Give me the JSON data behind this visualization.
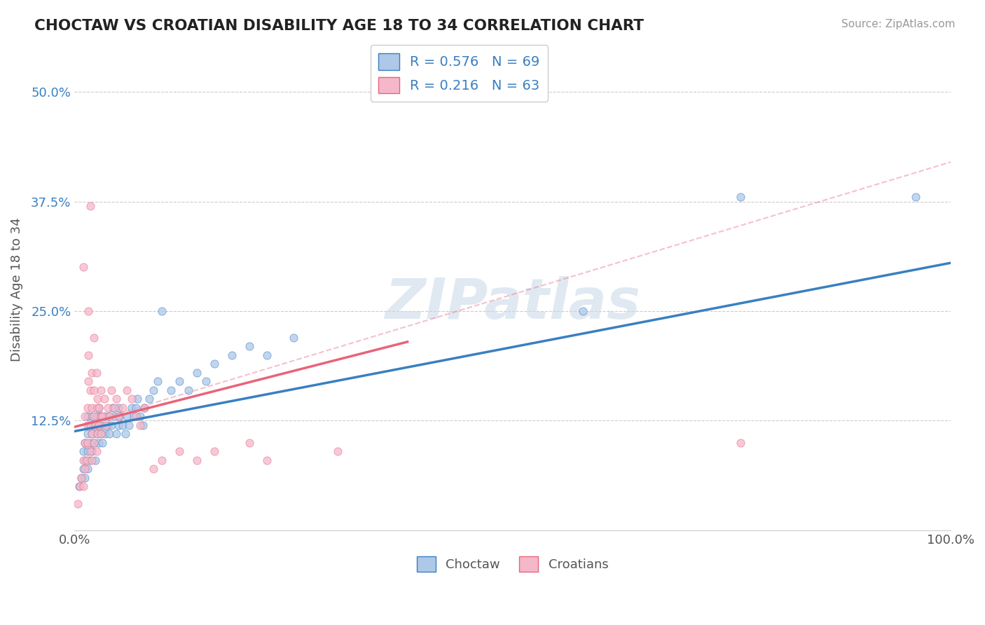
{
  "title": "CHOCTAW VS CROATIAN DISABILITY AGE 18 TO 34 CORRELATION CHART",
  "source": "Source: ZipAtlas.com",
  "ylabel": "Disability Age 18 to 34",
  "xlim": [
    0,
    1.0
  ],
  "ylim": [
    0,
    0.55
  ],
  "choctaw_R": 0.576,
  "choctaw_N": 69,
  "croatian_R": 0.216,
  "croatian_N": 63,
  "choctaw_color": "#adc8e8",
  "croatian_color": "#f5b8cb",
  "choctaw_line_color": "#3a7fc1",
  "croatian_line_color": "#e8647a",
  "watermark_text": "ZIPatlas",
  "background_color": "#ffffff",
  "choctaw_line": [
    0.0,
    0.113,
    1.0,
    0.305
  ],
  "croatian_line": [
    0.0,
    0.118,
    0.38,
    0.215
  ],
  "croatian_dashed": [
    0.0,
    0.118,
    1.0,
    0.42
  ],
  "choctaw_scatter": [
    [
      0.005,
      0.05
    ],
    [
      0.008,
      0.06
    ],
    [
      0.01,
      0.07
    ],
    [
      0.01,
      0.09
    ],
    [
      0.012,
      0.06
    ],
    [
      0.012,
      0.08
    ],
    [
      0.012,
      0.1
    ],
    [
      0.015,
      0.07
    ],
    [
      0.015,
      0.09
    ],
    [
      0.015,
      0.11
    ],
    [
      0.015,
      0.13
    ],
    [
      0.017,
      0.08
    ],
    [
      0.018,
      0.1
    ],
    [
      0.018,
      0.12
    ],
    [
      0.02,
      0.09
    ],
    [
      0.02,
      0.11
    ],
    [
      0.02,
      0.13
    ],
    [
      0.022,
      0.1
    ],
    [
      0.022,
      0.12
    ],
    [
      0.024,
      0.08
    ],
    [
      0.025,
      0.11
    ],
    [
      0.025,
      0.13
    ],
    [
      0.028,
      0.1
    ],
    [
      0.028,
      0.12
    ],
    [
      0.028,
      0.14
    ],
    [
      0.03,
      0.11
    ],
    [
      0.03,
      0.13
    ],
    [
      0.032,
      0.1
    ],
    [
      0.032,
      0.12
    ],
    [
      0.035,
      0.11
    ],
    [
      0.035,
      0.13
    ],
    [
      0.038,
      0.12
    ],
    [
      0.04,
      0.11
    ],
    [
      0.04,
      0.13
    ],
    [
      0.042,
      0.12
    ],
    [
      0.044,
      0.14
    ],
    [
      0.046,
      0.13
    ],
    [
      0.048,
      0.11
    ],
    [
      0.05,
      0.12
    ],
    [
      0.05,
      0.14
    ],
    [
      0.052,
      0.13
    ],
    [
      0.055,
      0.12
    ],
    [
      0.058,
      0.11
    ],
    [
      0.06,
      0.13
    ],
    [
      0.062,
      0.12
    ],
    [
      0.065,
      0.14
    ],
    [
      0.068,
      0.13
    ],
    [
      0.07,
      0.14
    ],
    [
      0.072,
      0.15
    ],
    [
      0.075,
      0.13
    ],
    [
      0.078,
      0.12
    ],
    [
      0.08,
      0.14
    ],
    [
      0.085,
      0.15
    ],
    [
      0.09,
      0.16
    ],
    [
      0.095,
      0.17
    ],
    [
      0.1,
      0.25
    ],
    [
      0.11,
      0.16
    ],
    [
      0.12,
      0.17
    ],
    [
      0.13,
      0.16
    ],
    [
      0.14,
      0.18
    ],
    [
      0.15,
      0.17
    ],
    [
      0.16,
      0.19
    ],
    [
      0.18,
      0.2
    ],
    [
      0.2,
      0.21
    ],
    [
      0.22,
      0.2
    ],
    [
      0.25,
      0.22
    ],
    [
      0.58,
      0.25
    ],
    [
      0.76,
      0.38
    ],
    [
      0.96,
      0.38
    ]
  ],
  "croatian_scatter": [
    [
      0.004,
      0.03
    ],
    [
      0.006,
      0.05
    ],
    [
      0.008,
      0.06
    ],
    [
      0.01,
      0.05
    ],
    [
      0.01,
      0.08
    ],
    [
      0.01,
      0.3
    ],
    [
      0.012,
      0.07
    ],
    [
      0.012,
      0.1
    ],
    [
      0.012,
      0.13
    ],
    [
      0.014,
      0.08
    ],
    [
      0.015,
      0.1
    ],
    [
      0.015,
      0.12
    ],
    [
      0.015,
      0.14
    ],
    [
      0.016,
      0.17
    ],
    [
      0.016,
      0.2
    ],
    [
      0.016,
      0.25
    ],
    [
      0.018,
      0.37
    ],
    [
      0.018,
      0.09
    ],
    [
      0.018,
      0.12
    ],
    [
      0.018,
      0.16
    ],
    [
      0.02,
      0.08
    ],
    [
      0.02,
      0.11
    ],
    [
      0.02,
      0.14
    ],
    [
      0.02,
      0.18
    ],
    [
      0.022,
      0.1
    ],
    [
      0.022,
      0.13
    ],
    [
      0.022,
      0.16
    ],
    [
      0.022,
      0.22
    ],
    [
      0.024,
      0.12
    ],
    [
      0.025,
      0.09
    ],
    [
      0.025,
      0.14
    ],
    [
      0.025,
      0.18
    ],
    [
      0.026,
      0.11
    ],
    [
      0.026,
      0.15
    ],
    [
      0.028,
      0.12
    ],
    [
      0.028,
      0.14
    ],
    [
      0.03,
      0.11
    ],
    [
      0.03,
      0.13
    ],
    [
      0.03,
      0.16
    ],
    [
      0.032,
      0.13
    ],
    [
      0.034,
      0.15
    ],
    [
      0.036,
      0.12
    ],
    [
      0.038,
      0.14
    ],
    [
      0.04,
      0.13
    ],
    [
      0.042,
      0.16
    ],
    [
      0.045,
      0.14
    ],
    [
      0.048,
      0.15
    ],
    [
      0.05,
      0.13
    ],
    [
      0.055,
      0.14
    ],
    [
      0.06,
      0.16
    ],
    [
      0.065,
      0.15
    ],
    [
      0.07,
      0.13
    ],
    [
      0.075,
      0.12
    ],
    [
      0.08,
      0.14
    ],
    [
      0.09,
      0.07
    ],
    [
      0.1,
      0.08
    ],
    [
      0.12,
      0.09
    ],
    [
      0.14,
      0.08
    ],
    [
      0.16,
      0.09
    ],
    [
      0.2,
      0.1
    ],
    [
      0.22,
      0.08
    ],
    [
      0.3,
      0.09
    ],
    [
      0.76,
      0.1
    ]
  ]
}
